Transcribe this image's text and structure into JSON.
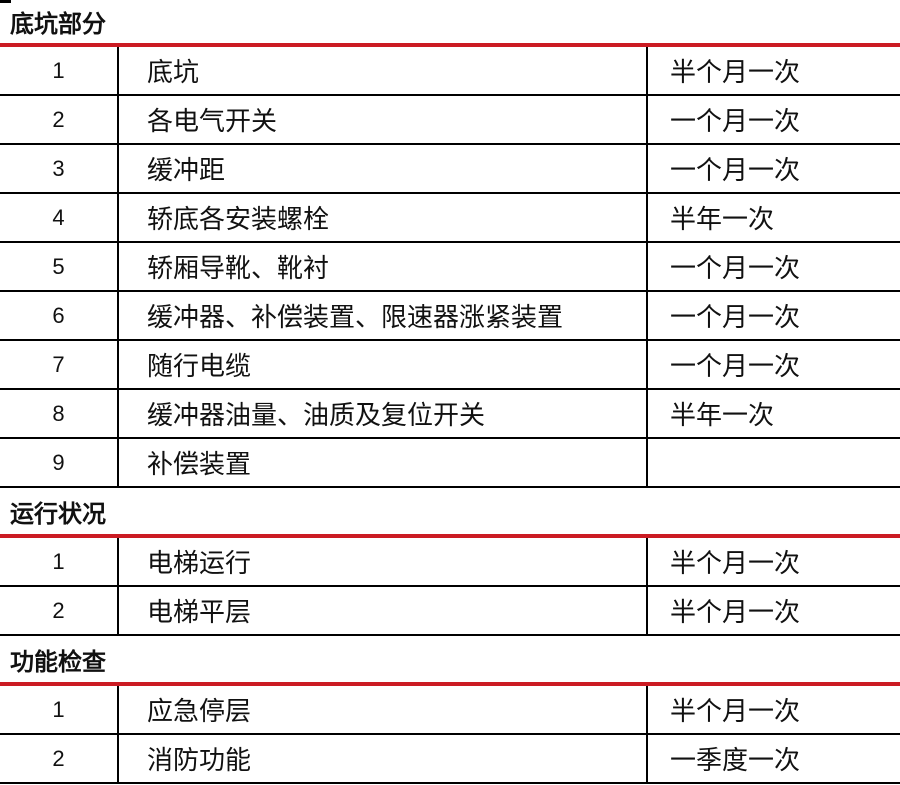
{
  "colors": {
    "accent_red": "#CB1B23",
    "line_black": "#000000",
    "text": "#111111",
    "background": "#ffffff"
  },
  "sections": [
    {
      "title": "底坑部分",
      "rows": [
        {
          "num": "1",
          "item": "底坑",
          "freq": "半个月一次"
        },
        {
          "num": "2",
          "item": "各电气开关",
          "freq": "一个月一次"
        },
        {
          "num": "3",
          "item": "缓冲距",
          "freq": "一个月一次"
        },
        {
          "num": "4",
          "item": "轿底各安装螺栓",
          "freq": "半年一次"
        },
        {
          "num": "5",
          "item": "轿厢导靴、靴衬",
          "freq": "一个月一次"
        },
        {
          "num": "6",
          "item": "缓冲器、补偿装置、限速器涨紧装置",
          "freq": "一个月一次"
        },
        {
          "num": "7",
          "item": "随行电缆",
          "freq": "一个月一次"
        },
        {
          "num": "8",
          "item": "缓冲器油量、油质及复位开关",
          "freq": "半年一次"
        },
        {
          "num": "9",
          "item": "补偿装置",
          "freq": ""
        }
      ]
    },
    {
      "title": "运行状况",
      "rows": [
        {
          "num": "1",
          "item": "电梯运行",
          "freq": "半个月一次"
        },
        {
          "num": "2",
          "item": "电梯平层",
          "freq": "半个月一次"
        }
      ]
    },
    {
      "title": "功能检查",
      "rows": [
        {
          "num": "1",
          "item": "应急停层",
          "freq": "半个月一次"
        },
        {
          "num": "2",
          "item": "消防功能",
          "freq": "一季度一次"
        }
      ]
    }
  ]
}
